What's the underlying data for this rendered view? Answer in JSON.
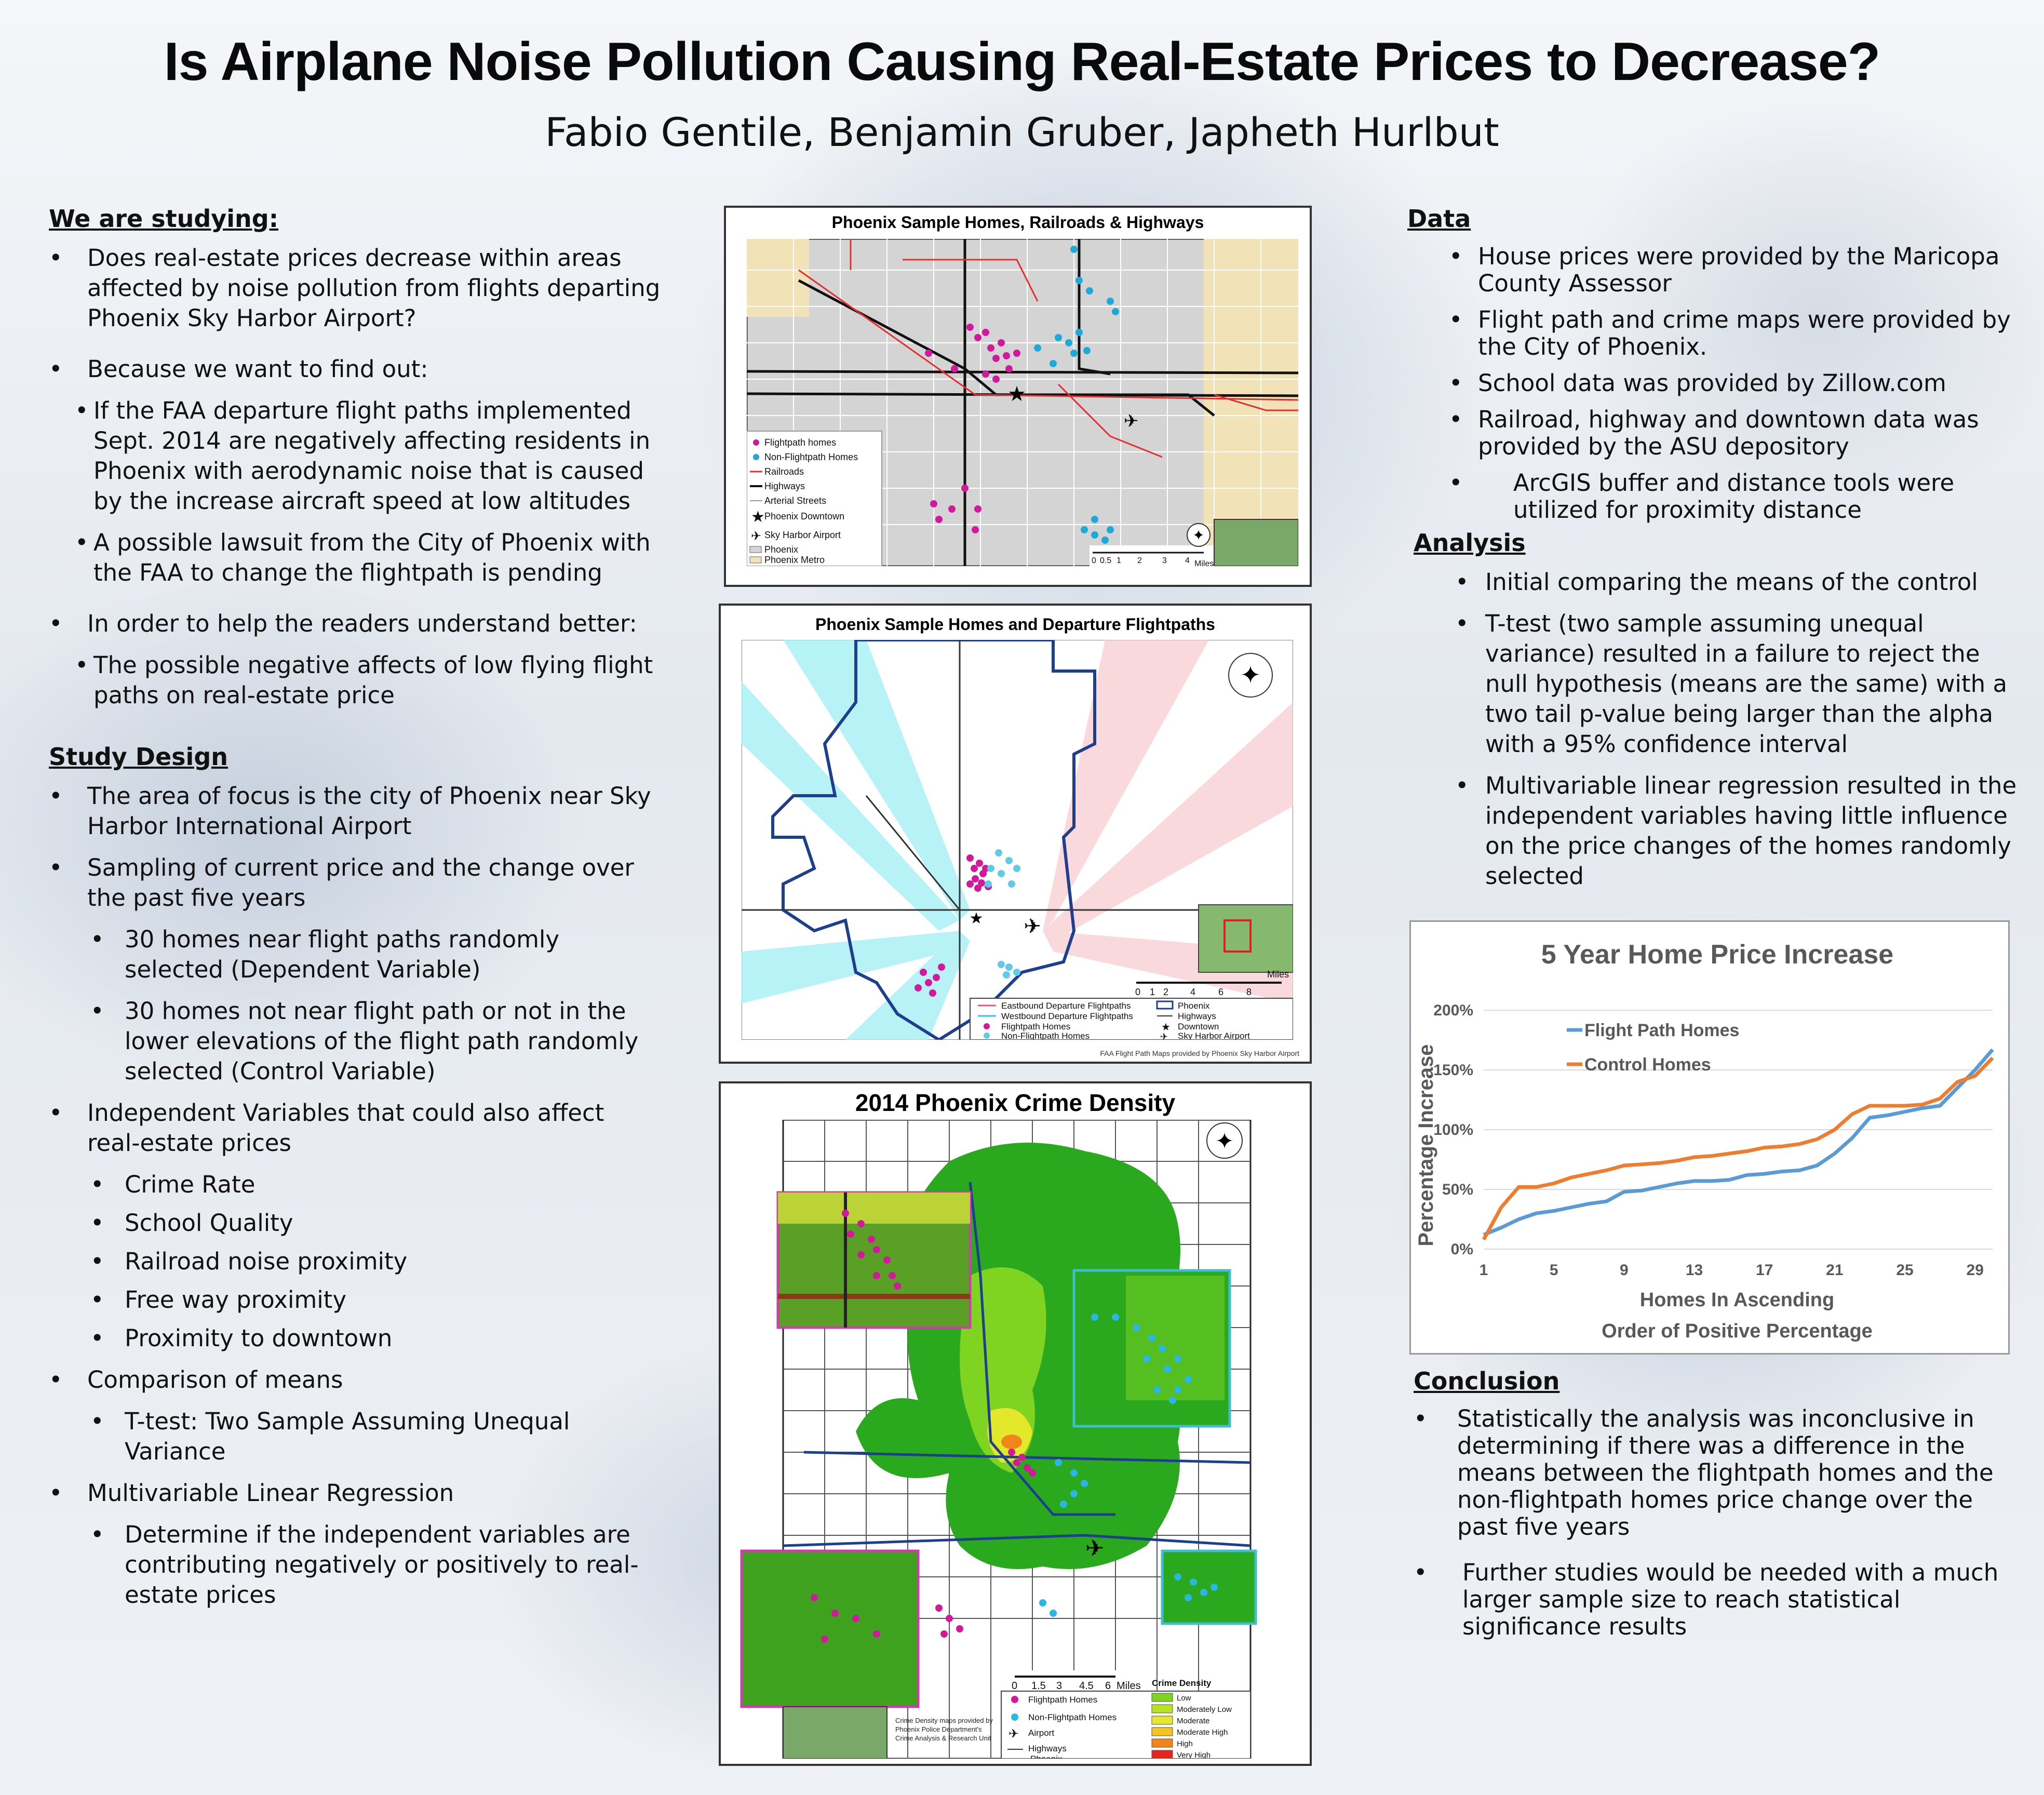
{
  "title": "Is Airplane Noise Pollution Causing Real-Estate Prices to Decrease?",
  "authors": "Fabio Gentile, Benjamin Gruber, Japheth Hurlbut",
  "studying": {
    "heading": "We are studying:",
    "q1": "Does real-estate prices decrease within areas affected by noise pollution from flights departing Phoenix Sky Harbor Airport?",
    "q2": "Because we want to find out:",
    "q2a": "If the FAA departure flight paths implemented Sept. 2014 are negatively affecting residents in Phoenix with aerodynamic noise that is caused by the increase aircraft speed at low altitudes",
    "q2b": "A possible lawsuit from the City of Phoenix with the FAA to change the flightpath is pending",
    "q3": "In order to help the readers understand better:",
    "q3a": "The possible negative affects of low flying flight paths on real-estate price"
  },
  "design": {
    "heading": "Study Design",
    "d1": "The area of focus is the city of Phoenix near Sky Harbor International Airport",
    "d2": "Sampling of current price and the change over the past five years",
    "d2a": "30 homes near flight paths randomly selected (Dependent Variable)",
    "d2b": "30 homes not near flight path or not in the lower elevations of the flight path randomly selected (Control Variable)",
    "d3": "Independent Variables that could also affect real-estate prices",
    "d3a": "Crime Rate",
    "d3b": "School Quality",
    "d3c": "Railroad noise proximity",
    "d3d": "Free way proximity",
    "d3e": "Proximity to downtown",
    "d4": "Comparison of means",
    "d4a": "T-test: Two Sample Assuming Unequal Variance",
    "d5": "Multivariable Linear Regression",
    "d5a": "Determine if the independent variables are contributing negatively or positively to real-estate prices"
  },
  "map1": {
    "title": "Phoenix Sample Homes, Railroads & Highways",
    "legend": [
      "Flightpath homes",
      "Non-Flightpath Homes",
      "Railroads",
      "Highways",
      "Arterial Streets",
      "Phoenix Downtown",
      "Sky Harbor Airport",
      "Phoenix",
      "Phoenix Metro"
    ],
    "scale_ticks": [
      "0",
      "0.5",
      "1",
      "2",
      "3",
      "4"
    ],
    "scale_unit": "Miles"
  },
  "map2": {
    "title": "Phoenix Sample Homes and Departure Flightpaths",
    "legend": [
      "Eastbound Departure Flightpaths",
      "Westbound Departure Flightpaths",
      "Flightpath Homes",
      "Non-Flightpath Homes",
      "Phoenix",
      "Highways",
      "Downtown",
      "Sky Harbor Airport"
    ],
    "scale_ticks": [
      "0",
      "1",
      "2",
      "4",
      "6",
      "8"
    ],
    "scale_unit": "Miles",
    "credit": "FAA Flight Path Maps provided by Phoenix Sky Harbor Airport"
  },
  "map3": {
    "title": "2014 Phoenix Crime Density",
    "legend": [
      "Flightpath Homes",
      "Non-Flightpath Homes",
      "Airport",
      "Highways",
      "Phoenix"
    ],
    "density_title": "Crime Density",
    "density_levels": [
      "Low",
      "Moderately Low",
      "Moderate",
      "Moderate High",
      "High",
      "Very High"
    ],
    "density_colors": [
      "#7fd321",
      "#b9e31f",
      "#e3e82a",
      "#f3c51e",
      "#f0861a",
      "#e8251c"
    ],
    "scale_ticks": [
      "0",
      "1.5",
      "3",
      "4.5",
      "6"
    ],
    "scale_unit": "Miles",
    "credit": "Crime Density maps provided by Phoenix Police Department's Crime Analysis & Research Unit"
  },
  "data_section": {
    "heading": "Data",
    "a": "House prices were provided by the Maricopa County Assessor",
    "b": "Flight path and crime maps were provided by the City of Phoenix.",
    "c": "School data was provided by Zillow.com",
    "d": "Railroad, highway and downtown data was provided by the ASU depository",
    "d1": "ArcGIS buffer and distance tools were utilized for proximity distance"
  },
  "analysis": {
    "heading": "Analysis",
    "a": "Initial comparing the means of the control",
    "b": "T-test (two sample assuming unequal variance) resulted in a failure to reject the null hypothesis (means are the same) with a two tail p-value being larger than the alpha with a 95% confidence interval",
    "c": "Multivariable linear regression resulted in the independent variables having little influence on the price changes of the homes randomly selected"
  },
  "conclusion": {
    "heading": "Conclusion",
    "a": "Statistically the analysis was inconclusive in determining if there was a difference in the means between the flightpath homes and the non-flightpath homes price change over the past five years",
    "b": "Further studies would be needed with a much larger sample size to reach statistical significance results"
  },
  "chart_data": {
    "type": "line",
    "title": "5 Year Home Price Increase",
    "xlabel": "Homes In Ascending Order of Positive Percentage",
    "ylabel": "Percentage Increase",
    "x": [
      1,
      2,
      3,
      4,
      5,
      6,
      7,
      8,
      9,
      10,
      11,
      12,
      13,
      14,
      15,
      16,
      17,
      18,
      19,
      20,
      21,
      22,
      23,
      24,
      25,
      26,
      27,
      28,
      29,
      30
    ],
    "x_ticks": [
      "1",
      "5",
      "9",
      "13",
      "17",
      "21",
      "25",
      "29"
    ],
    "y_ticks": [
      "0%",
      "50%",
      "100%",
      "150%",
      "200%"
    ],
    "ylim": [
      0,
      200
    ],
    "legend_position": "top-left",
    "grid": true,
    "series": [
      {
        "name": "Flight Path Homes",
        "color": "#5b9bd5",
        "values": [
          12,
          18,
          25,
          30,
          32,
          35,
          38,
          40,
          48,
          49,
          52,
          55,
          57,
          57,
          58,
          62,
          63,
          65,
          66,
          70,
          80,
          93,
          110,
          112,
          115,
          118,
          120,
          135,
          150,
          167
        ]
      },
      {
        "name": "Control Homes",
        "color": "#ed7d31",
        "values": [
          8,
          35,
          52,
          52,
          55,
          60,
          63,
          66,
          70,
          71,
          72,
          74,
          77,
          78,
          80,
          82,
          85,
          86,
          88,
          92,
          100,
          113,
          120,
          120,
          120,
          121,
          126,
          140,
          145,
          160
        ]
      }
    ]
  }
}
